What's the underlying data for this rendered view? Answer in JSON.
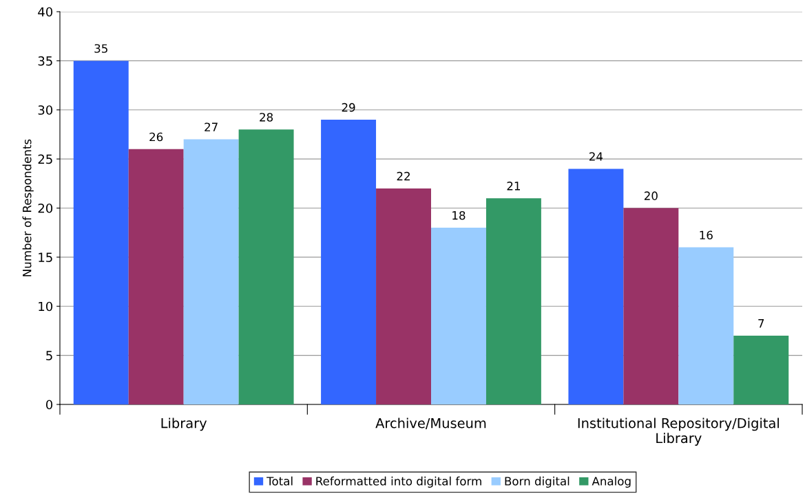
{
  "chart_data": {
    "type": "bar",
    "ylabel": "Number of Respondents",
    "categories": [
      "Library",
      "Archive/Museum",
      "Institutional Repository/Digital Library"
    ],
    "series": [
      {
        "name": "Total",
        "color": "#3366ff",
        "values": [
          35,
          29,
          24
        ]
      },
      {
        "name": "Reformatted into digital form",
        "color": "#993366",
        "values": [
          26,
          22,
          20
        ]
      },
      {
        "name": "Born digital",
        "color": "#99ccff",
        "values": [
          27,
          18,
          16
        ]
      },
      {
        "name": "Analog",
        "color": "#339966",
        "values": [
          28,
          21,
          7
        ]
      }
    ],
    "ylim": [
      0,
      40
    ],
    "yticks": [
      0,
      5,
      10,
      15,
      20,
      25,
      30,
      35,
      40
    ],
    "grid": "y",
    "legend": "bottom",
    "data_labels": true
  }
}
